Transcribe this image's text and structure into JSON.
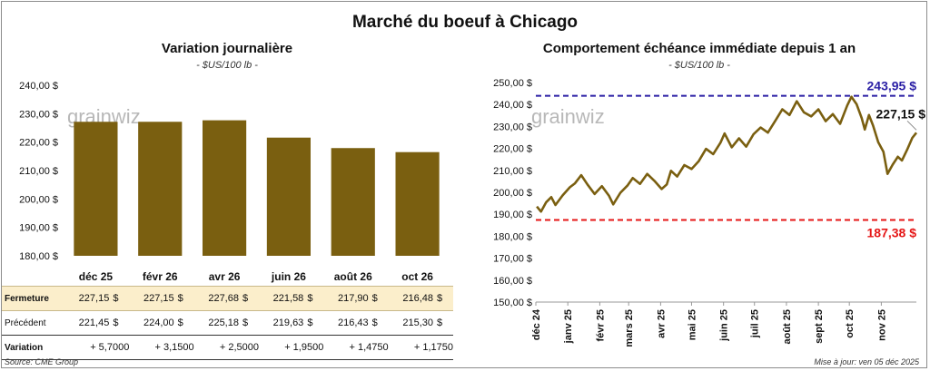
{
  "title": "Marché du boeuf à Chicago",
  "left": {
    "title": "Variation journalière",
    "unit": "- $US/100 lb -",
    "watermark": "grainwiz",
    "table": {
      "rows": [
        {
          "label": "Fermeture",
          "values": [
            "227,15",
            "227,15",
            "227,68",
            "221,58",
            "217,90",
            "216,48"
          ],
          "currency": "$"
        },
        {
          "label": "Précédent",
          "values": [
            "221,45",
            "224,00",
            "225,18",
            "219,63",
            "216,43",
            "215,30"
          ],
          "currency": "$"
        },
        {
          "label": "Variation",
          "values": [
            "+ 5,7000",
            "+ 3,1500",
            "+ 2,5000",
            "+ 1,9500",
            "+ 1,4750",
            "+ 1,1750"
          ]
        }
      ]
    }
  },
  "right": {
    "title": "Comportement échéance immédiate depuis 1 an",
    "unit": "- $US/100 lb -",
    "watermark": "grainwiz",
    "high_label": "243,95 $",
    "low_label": "187,38 $",
    "last_label": "227,15 $"
  },
  "source": "Source: CME Group",
  "updated": "Mise à jour: ven 05 déc 2025",
  "colors": {
    "bar": "#7a5f10",
    "line": "#7a5f10",
    "high": "#2a1fa5",
    "low": "#e51616",
    "close_bg": "#fbeecb"
  },
  "chart_data": [
    {
      "type": "bar",
      "categories": [
        "déc 25",
        "févr 26",
        "avr 26",
        "juin 26",
        "août 26",
        "oct 26"
      ],
      "values": [
        227.15,
        227.15,
        227.68,
        221.58,
        217.9,
        216.48
      ],
      "ylim": [
        180,
        240
      ],
      "yticks": [
        "180,00 $",
        "190,00 $",
        "200,00 $",
        "210,00 $",
        "220,00 $",
        "230,00 $",
        "240,00 $"
      ],
      "grid": false
    },
    {
      "type": "line",
      "xlim": [
        "2024-12-01",
        "2025-12-05"
      ],
      "ylim": [
        150,
        250
      ],
      "xticks": [
        "déc 24",
        "janv 25",
        "févr 25",
        "mars 25",
        "avr 25",
        "mai 25",
        "juin 25",
        "juil 25",
        "août 25",
        "sept 25",
        "oct 25",
        "nov 25"
      ],
      "yticks": [
        "150,00 $",
        "160,00 $",
        "170,00 $",
        "180,00 $",
        "190,00 $",
        "200,00 $",
        "210,00 $",
        "220,00 $",
        "230,00 $",
        "240,00 $",
        "250,00 $"
      ],
      "reference_lines": [
        {
          "value": 243.95,
          "style": "dashed"
        },
        {
          "value": 187.38,
          "style": "dashed"
        }
      ],
      "series": [
        {
          "x": [
            "2024-12-02",
            "2024-12-06",
            "2024-12-11",
            "2024-12-16",
            "2024-12-20",
            "2024-12-27",
            "2025-01-03",
            "2025-01-08",
            "2025-01-14",
            "2025-01-20",
            "2025-01-27",
            "2025-02-03",
            "2025-02-10",
            "2025-02-14",
            "2025-02-21",
            "2025-02-28",
            "2025-03-05",
            "2025-03-12",
            "2025-03-19",
            "2025-03-26",
            "2025-04-02",
            "2025-04-07",
            "2025-04-11",
            "2025-04-17",
            "2025-04-24",
            "2025-05-01",
            "2025-05-08",
            "2025-05-15",
            "2025-05-22",
            "2025-05-29",
            "2025-06-02",
            "2025-06-09",
            "2025-06-16",
            "2025-06-23",
            "2025-06-30",
            "2025-07-07",
            "2025-07-14",
            "2025-07-21",
            "2025-07-28",
            "2025-08-04",
            "2025-08-11",
            "2025-08-18",
            "2025-08-25",
            "2025-09-01",
            "2025-09-08",
            "2025-09-15",
            "2025-09-22",
            "2025-09-29",
            "2025-10-03",
            "2025-10-08",
            "2025-10-13",
            "2025-10-16",
            "2025-10-20",
            "2025-10-24",
            "2025-10-29",
            "2025-11-03",
            "2025-11-07",
            "2025-11-12",
            "2025-11-17",
            "2025-11-21",
            "2025-11-26",
            "2025-12-01",
            "2025-12-05"
          ],
          "values": [
            193.5,
            191.2,
            195.5,
            197.8,
            194.2,
            198.6,
            202.3,
            204.1,
            207.8,
            203.6,
            199.2,
            202.8,
            198.4,
            194.5,
            199.8,
            203.2,
            206.5,
            203.8,
            208.4,
            205.2,
            201.5,
            203.6,
            209.8,
            207.2,
            212.4,
            210.6,
            214.2,
            219.8,
            217.4,
            222.6,
            226.8,
            220.5,
            224.6,
            220.8,
            226.4,
            229.5,
            227.2,
            232.4,
            237.8,
            235.2,
            241.5,
            236.4,
            234.6,
            237.8,
            232.4,
            235.6,
            231.2,
            239.6,
            243.5,
            240.2,
            233.8,
            228.6,
            235.2,
            230.4,
            222.8,
            218.5,
            208.4,
            212.6,
            216.2,
            214.5,
            219.4,
            224.8,
            227.15
          ]
        }
      ]
    }
  ]
}
